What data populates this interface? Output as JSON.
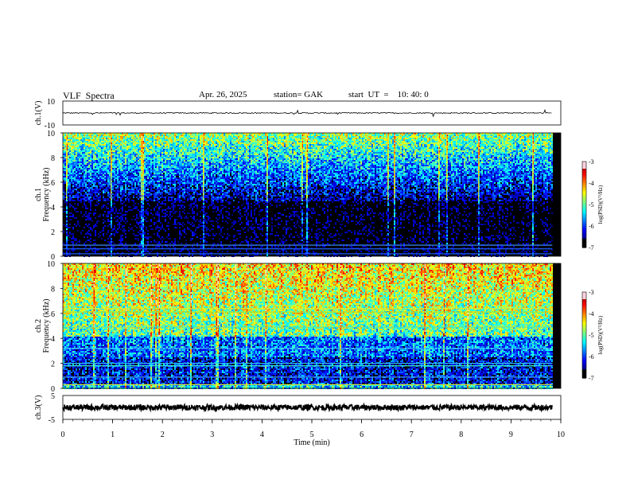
{
  "header": {
    "title": "VLF  Spectra",
    "date": "Apr. 26, 2025",
    "station": "station= GAK",
    "start": "start  UT  =    10: 40: 0"
  },
  "chart_data": {
    "type": "heatmap",
    "xlabel": "Time  (min)",
    "xlim": [
      0,
      10
    ],
    "x_ticks": [
      "0",
      "1",
      "2",
      "3",
      "4",
      "5",
      "6",
      "7",
      "8",
      "9",
      "10"
    ],
    "panels": [
      {
        "id": "ch1_waveform",
        "type": "line",
        "ylabel": "ch.1(V)",
        "ylim": [
          -10,
          10
        ],
        "y_ticks": [
          "10",
          "-10"
        ],
        "baseline": 0,
        "data_end_min": 9.83
      },
      {
        "id": "ch1_spectrogram",
        "type": "heatmap",
        "ylabel": "Frequency  (kHz)",
        "ylabel2": "ch.1",
        "ylim": [
          0,
          10
        ],
        "y_ticks": [
          "0",
          "2",
          "4",
          "6",
          "8",
          "10"
        ],
        "data_end_min": 9.83,
        "colorbar": {
          "label": "log(PSD)(V²/Hz)",
          "range": [
            -7,
            -3
          ],
          "ticks": [
            "-3",
            "-4",
            "-5",
            "-6",
            "-7"
          ]
        }
      },
      {
        "id": "ch2_spectrogram",
        "type": "heatmap",
        "ylabel": "Frequency  (kHz)",
        "ylabel2": "ch.2",
        "ylim": [
          0,
          10
        ],
        "y_ticks": [
          "0",
          "2",
          "4",
          "6",
          "8",
          "10"
        ],
        "data_end_min": 9.83,
        "colorbar": {
          "label": "log(PSD)(V²/Hz)",
          "range": [
            -7,
            -3
          ],
          "ticks": [
            "-3",
            "-4",
            "-5",
            "-6",
            "-7"
          ]
        }
      },
      {
        "id": "ch3_waveform",
        "type": "line",
        "ylabel": "ch.3(V)",
        "ylim": [
          -5,
          5
        ],
        "y_ticks": [
          "5",
          "-5"
        ],
        "baseline": 0,
        "data_end_min": 9.83
      }
    ]
  }
}
